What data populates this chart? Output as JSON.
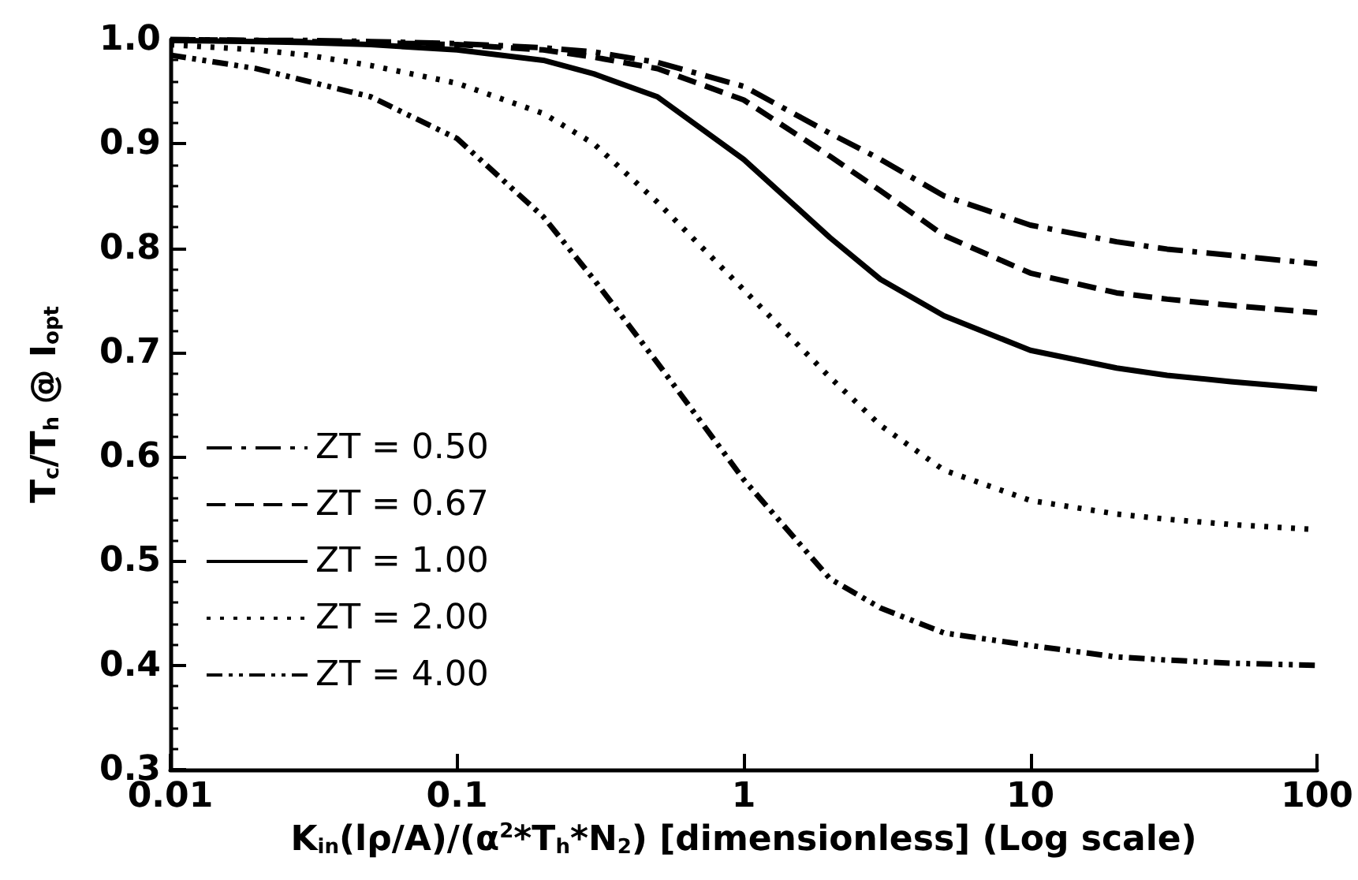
{
  "chart_data": {
    "type": "line",
    "xlabel": "K$_{in}$(lρ/A)/(α$^{2}$*T$_{h}$*N$_{2}$) [dimensionless] (Log scale)",
    "ylabel": "T$_{c}$/T$_{h}$ @ I$_{opt}$",
    "log": "x",
    "x": [
      0.01,
      0.02,
      0.03,
      0.05,
      0.1,
      0.2,
      0.3,
      0.5,
      1,
      2,
      3,
      5,
      10,
      20,
      30,
      50,
      100
    ],
    "series": [
      {
        "name": "ZT = 0.50",
        "color": "#000000",
        "line_style": "dashdot",
        "values": [
          1.0,
          0.999,
          0.999,
          0.998,
          0.996,
          0.992,
          0.988,
          0.978,
          0.955,
          0.91,
          0.885,
          0.85,
          0.822,
          0.806,
          0.799,
          0.793,
          0.785
        ]
      },
      {
        "name": "ZT = 0.67",
        "color": "#000000",
        "line_style": "dashed",
        "values": [
          1.0,
          0.999,
          0.998,
          0.997,
          0.995,
          0.99,
          0.983,
          0.972,
          0.942,
          0.888,
          0.855,
          0.812,
          0.776,
          0.757,
          0.751,
          0.745,
          0.738
        ]
      },
      {
        "name": "ZT = 1.00",
        "color": "#000000",
        "line_style": "solid",
        "values": [
          0.999,
          0.998,
          0.997,
          0.995,
          0.99,
          0.98,
          0.967,
          0.945,
          0.885,
          0.81,
          0.77,
          0.735,
          0.702,
          0.685,
          0.678,
          0.672,
          0.665
        ]
      },
      {
        "name": "ZT = 2.00",
        "color": "#000000",
        "line_style": "dotted",
        "values": [
          0.995,
          0.99,
          0.985,
          0.975,
          0.958,
          0.929,
          0.9,
          0.844,
          0.76,
          0.676,
          0.63,
          0.587,
          0.558,
          0.545,
          0.54,
          0.535,
          0.53
        ]
      },
      {
        "name": "ZT = 4.00",
        "color": "#000000",
        "line_style": "dashdotdot",
        "values": [
          0.985,
          0.972,
          0.96,
          0.945,
          0.905,
          0.83,
          0.77,
          0.69,
          0.578,
          0.483,
          0.455,
          0.431,
          0.419,
          0.408,
          0.405,
          0.402,
          0.4
        ]
      }
    ],
    "xlim": [
      0.01,
      100
    ],
    "xticks": [
      0.01,
      0.1,
      1,
      10,
      100
    ],
    "ylim": [
      0.3,
      1.0
    ],
    "yticks": [
      0.3,
      0.4,
      0.5,
      0.6,
      0.7,
      0.8,
      0.9,
      {
        "value": 1.0,
        "label": "1.0"
      }
    ],
    "grid": false,
    "legend": "bottom left",
    "marker": "none"
  }
}
